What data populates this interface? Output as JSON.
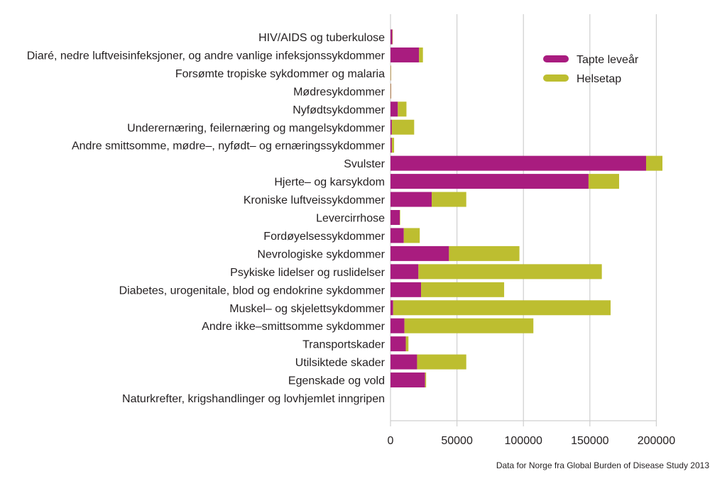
{
  "chart_data": {
    "type": "bar",
    "orientation": "horizontal",
    "stacked": true,
    "categories": [
      "HIV/AIDS og tuberkulose",
      "Diaré, nedre luftveisinfeksjoner, og andre vanlige infeksjonssykdommer",
      "Forsømte tropiske sykdommer og malaria",
      "Mødresykdommer",
      "Nyfødtsykdommer",
      "Underernæring, feilernæring og mangelsykdommer",
      "Andre smittsomme, mødre–, nyfødt– og ernæringssykdommer",
      "Svulster",
      "Hjerte– og karsykdom",
      "Kroniske luftveissykdommer",
      "Levercirrhose",
      "Fordøyelsessykdommer ",
      "Nevrologiske sykdommer",
      "Psykiske lidelser og ruslidelser",
      "Diabetes, urogenitale, blod og endokrine sykdommer",
      "Muskel– og skjelettsykdommer",
      "Andre ikke–smittsomme sykdommer",
      "Transportskader",
      "Utilsiktede skader ",
      "Egenskade og vold",
      "Naturkrefter, krigshandlinger og lovhjemlet inngripen"
    ],
    "series": [
      {
        "name": "Tapte leveår",
        "color": "#a91c7f",
        "values": [
          1400,
          21500,
          100,
          200,
          5500,
          1000,
          1000,
          192300,
          149000,
          31000,
          7000,
          10000,
          44000,
          21000,
          23000,
          2000,
          10500,
          11500,
          20000,
          26000,
          0
        ]
      },
      {
        "name": "Helsetap",
        "color": "#bdbe30",
        "values": [
          100,
          2900,
          50,
          150,
          6500,
          16800,
          1700,
          12300,
          23000,
          26000,
          300,
          12000,
          53000,
          138000,
          62500,
          163600,
          97000,
          2000,
          37000,
          800,
          0
        ]
      }
    ],
    "x_ticks": [
      "0",
      "50000",
      "100000",
      "150000",
      "200000"
    ],
    "x_tick_values": [
      0,
      50000,
      100000,
      150000,
      200000
    ],
    "xlim": [
      0,
      240000
    ],
    "xlabel": "",
    "ylabel": "",
    "title": "",
    "grid": true,
    "legend_position": "top-right",
    "source_note": "Data for Norge fra Global Burden of Disease Study 2013"
  }
}
